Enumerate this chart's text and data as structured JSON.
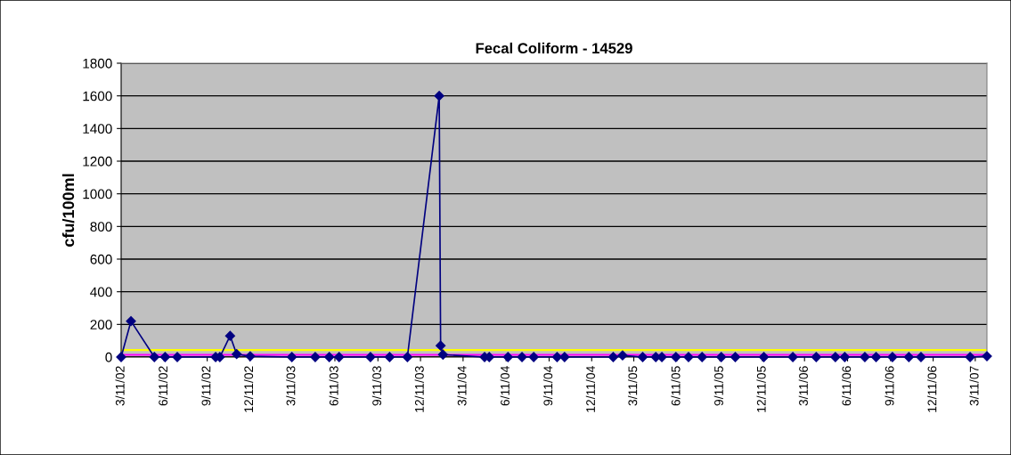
{
  "chart_data": {
    "type": "line",
    "title": "Fecal Coliform - 14529",
    "ylabel": "cfu/100ml",
    "x": [
      "2002-03-11",
      "2002-04-01",
      "2002-05-21",
      "2002-06-13",
      "2002-07-09",
      "2002-09-29",
      "2002-10-08",
      "2002-10-30",
      "2002-11-13",
      "2002-12-12",
      "2003-03-11",
      "2003-04-30",
      "2003-05-30",
      "2003-06-20",
      "2003-08-26",
      "2003-10-06",
      "2003-11-13",
      "2004-01-20",
      "2004-01-23",
      "2004-01-28",
      "2004-04-26",
      "2004-05-06",
      "2004-06-15",
      "2004-07-15",
      "2004-08-09",
      "2004-09-28",
      "2004-10-14",
      "2005-01-26",
      "2005-02-15",
      "2005-03-30",
      "2005-04-27",
      "2005-05-10",
      "2005-06-09",
      "2005-07-06",
      "2005-08-04",
      "2005-09-14",
      "2005-10-14",
      "2005-12-14",
      "2006-02-14",
      "2006-04-05",
      "2006-05-16",
      "2006-06-05",
      "2006-07-18",
      "2006-08-11",
      "2006-09-15",
      "2006-10-20",
      "2006-11-15",
      "2007-02-28",
      "2007-04-05"
    ],
    "series": [
      {
        "color": "#000080",
        "values": [
          0,
          220,
          0,
          0,
          0,
          0,
          0,
          130,
          18,
          5,
          0,
          0,
          0,
          0,
          0,
          0,
          0,
          1600,
          70,
          15,
          0,
          0,
          0,
          0,
          0,
          0,
          0,
          0,
          10,
          0,
          0,
          0,
          0,
          0,
          0,
          0,
          0,
          0,
          0,
          0,
          0,
          0,
          0,
          0,
          0,
          0,
          0,
          0,
          5
        ]
      }
    ],
    "marker": "diamond",
    "line_style": "solid",
    "xlim": [
      "2002-03-11",
      "2007-04-05"
    ],
    "xticks": [
      {
        "value": "2002-03-11",
        "label": "3/11/02"
      },
      {
        "value": "2002-06-11",
        "label": "6/11/02"
      },
      {
        "value": "2002-09-11",
        "label": "9/11/02"
      },
      {
        "value": "2002-12-11",
        "label": "12/11/02"
      },
      {
        "value": "2003-03-11",
        "label": "3/11/03"
      },
      {
        "value": "2003-06-11",
        "label": "6/11/03"
      },
      {
        "value": "2003-09-11",
        "label": "9/11/03"
      },
      {
        "value": "2003-12-11",
        "label": "12/11/03"
      },
      {
        "value": "2004-03-11",
        "label": "3/11/04"
      },
      {
        "value": "2004-06-11",
        "label": "6/11/04"
      },
      {
        "value": "2004-09-11",
        "label": "9/11/04"
      },
      {
        "value": "2004-12-11",
        "label": "12/11/04"
      },
      {
        "value": "2005-03-11",
        "label": "3/11/05"
      },
      {
        "value": "2005-06-11",
        "label": "6/11/05"
      },
      {
        "value": "2005-09-11",
        "label": "9/11/05"
      },
      {
        "value": "2005-12-11",
        "label": "12/11/05"
      },
      {
        "value": "2006-03-11",
        "label": "3/11/06"
      },
      {
        "value": "2006-06-11",
        "label": "6/11/06"
      },
      {
        "value": "2006-09-11",
        "label": "9/11/06"
      },
      {
        "value": "2006-12-11",
        "label": "12/11/06"
      },
      {
        "value": "2007-03-11",
        "label": "3/11/07"
      }
    ],
    "ylim": [
      0,
      1800
    ],
    "yticks": [
      0,
      200,
      400,
      600,
      800,
      1000,
      1200,
      1400,
      1600,
      1800
    ],
    "grid": "y",
    "ref_lines": [
      {
        "axis": "y",
        "value": 43,
        "color": "#ffff00"
      },
      {
        "axis": "y",
        "value": 14,
        "color": "#ff00ff"
      }
    ]
  }
}
